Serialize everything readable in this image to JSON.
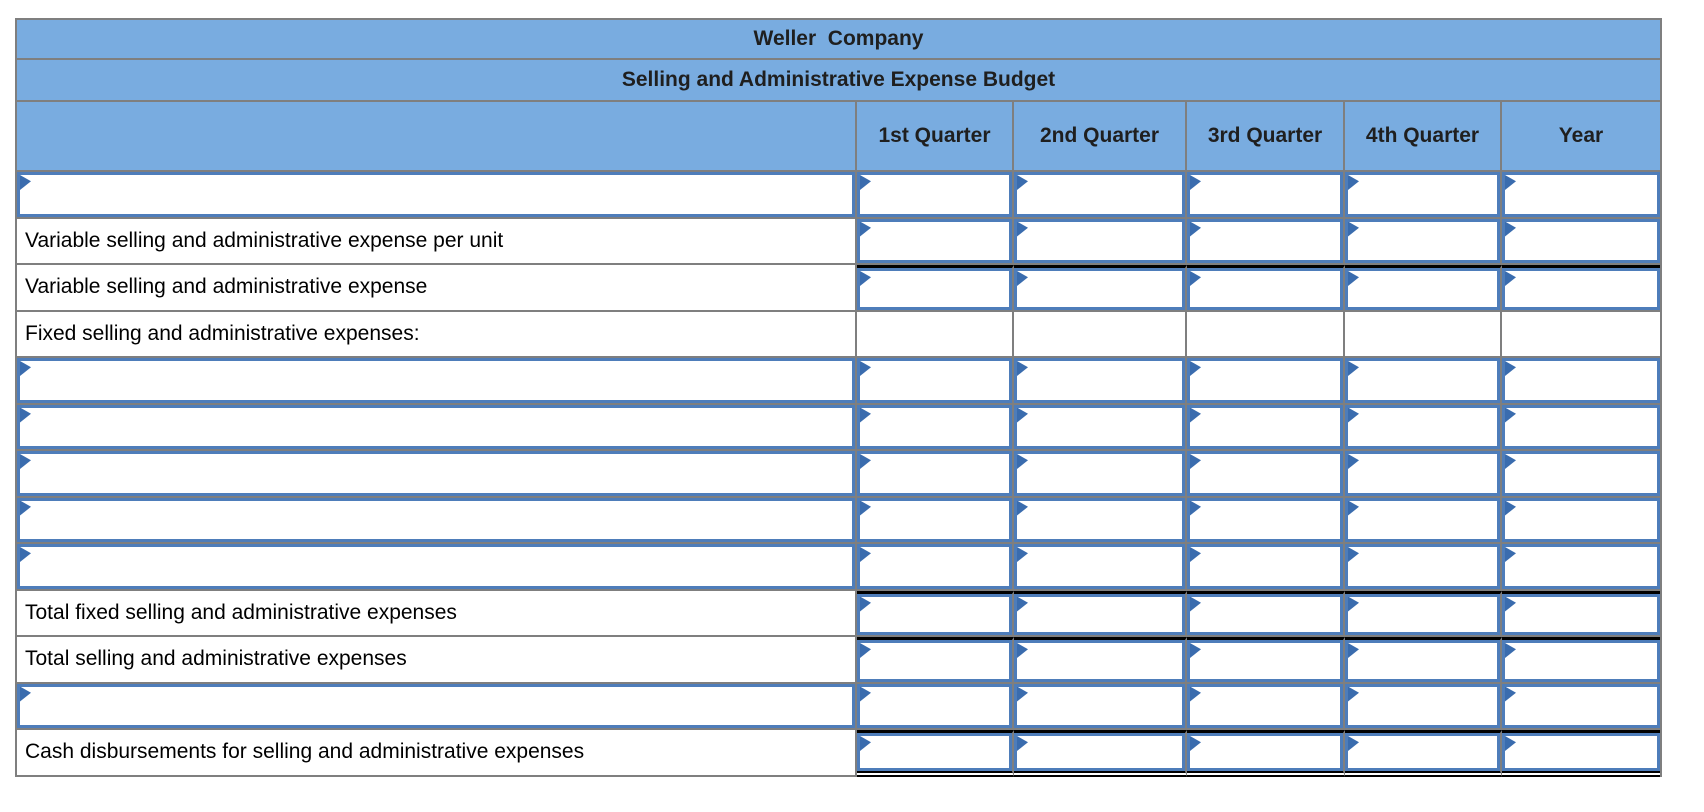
{
  "colors": {
    "header_bg": "#79ace0",
    "grid_border": "#7f7f7f",
    "input_border": "#4e7dba",
    "flag": "#3a6cae",
    "rule": "#000000",
    "title_text": "#1f1f1f",
    "label_text": "#000000",
    "page_bg": "#ffffff"
  },
  "table": {
    "title": "Weller  Company",
    "subtitle": "Selling and Administrative Expense Budget",
    "columns": [
      "1st Quarter",
      "2nd Quarter",
      "3rd Quarter",
      "4th Quarter",
      "Year"
    ],
    "input_value": "",
    "rows": [
      {
        "label": "",
        "label_is_input": true,
        "value_cells": "input",
        "rule_above_values": false,
        "double_rule_below_values": false
      },
      {
        "label": "Variable selling and administrative expense per unit",
        "label_is_input": false,
        "value_cells": "input",
        "rule_above_values": false,
        "double_rule_below_values": false
      },
      {
        "label": "Variable selling and administrative expense",
        "label_is_input": false,
        "value_cells": "input",
        "rule_above_values": true,
        "double_rule_below_values": false
      },
      {
        "label": "Fixed selling and administrative expenses:",
        "label_is_input": false,
        "value_cells": "static",
        "rule_above_values": false,
        "double_rule_below_values": false
      },
      {
        "label": "",
        "label_is_input": true,
        "value_cells": "input",
        "rule_above_values": false,
        "double_rule_below_values": false
      },
      {
        "label": "",
        "label_is_input": true,
        "value_cells": "input",
        "rule_above_values": false,
        "double_rule_below_values": false
      },
      {
        "label": "",
        "label_is_input": true,
        "value_cells": "input",
        "rule_above_values": false,
        "double_rule_below_values": false
      },
      {
        "label": "",
        "label_is_input": true,
        "value_cells": "input",
        "rule_above_values": false,
        "double_rule_below_values": false
      },
      {
        "label": "",
        "label_is_input": true,
        "value_cells": "input",
        "rule_above_values": false,
        "double_rule_below_values": false
      },
      {
        "label": "Total fixed selling and administrative expenses",
        "label_is_input": false,
        "value_cells": "input",
        "rule_above_values": true,
        "double_rule_below_values": false
      },
      {
        "label": "Total selling and administrative expenses",
        "label_is_input": false,
        "value_cells": "input",
        "rule_above_values": true,
        "double_rule_below_values": false
      },
      {
        "label": "",
        "label_is_input": true,
        "value_cells": "input",
        "rule_above_values": false,
        "double_rule_below_values": false
      },
      {
        "label": "Cash disbursements for selling and administrative expenses",
        "label_is_input": false,
        "value_cells": "input",
        "rule_above_values": true,
        "double_rule_below_values": true
      }
    ]
  }
}
